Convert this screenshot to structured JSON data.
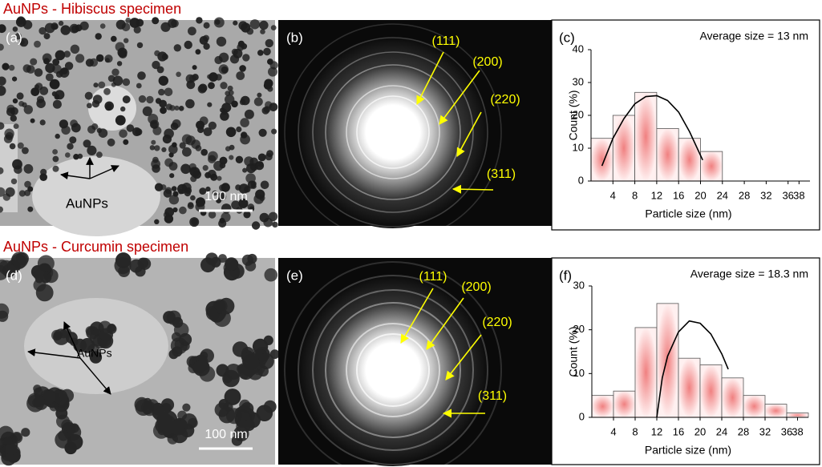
{
  "rows": [
    {
      "title": "AuNPs - Hibiscus specimen",
      "tem": {
        "label": "(a)",
        "annotation": "AuNPs",
        "scale_bar": "100 nm"
      },
      "saed": {
        "label": "(b)",
        "rings": [
          "(111)",
          "(200)",
          "(220)",
          "(311)"
        ]
      }
    },
    {
      "title": "AuNPs - Curcumin specimen",
      "tem": {
        "label": "(d)",
        "annotation": "AuNPs",
        "scale_bar": "100 nm"
      },
      "saed": {
        "label": "(e)",
        "rings": [
          "(111)",
          "(200)",
          "(220)",
          "(311)"
        ]
      }
    }
  ],
  "chart_data": [
    {
      "type": "histogram",
      "panel_label": "(c)",
      "annotation": "Average size = 13 nm",
      "x_label": "Particle size (nm)",
      "y_label": "Count (%)",
      "bins": [
        0,
        4,
        8,
        12,
        16,
        20,
        24
      ],
      "values": [
        13,
        20,
        27,
        16,
        13,
        9
      ],
      "color": "#f08080",
      "fit": {
        "x": [
          2,
          4,
          6,
          8,
          10,
          12,
          14,
          16,
          18,
          20.4
        ],
        "values": [
          4.6,
          13,
          19,
          23.5,
          25.7,
          26,
          24.5,
          21,
          15,
          6.4
        ]
      },
      "xlim": [
        0,
        40
      ],
      "xticks": [
        4,
        8,
        12,
        16,
        20,
        24,
        28,
        32,
        36,
        38
      ],
      "ylim": [
        0,
        40
      ],
      "yticks": [
        0,
        10,
        20,
        30,
        40
      ]
    },
    {
      "type": "histogram",
      "panel_label": "(f)",
      "annotation": "Average size = 18.3 nm",
      "x_label": "Particle size (nm)",
      "y_label": "Count (%)",
      "bins": [
        0,
        4,
        8,
        12,
        16,
        20,
        24,
        28,
        32,
        36,
        40
      ],
      "values": [
        5,
        6,
        20.5,
        26,
        13.5,
        12,
        9,
        5,
        3,
        1
      ],
      "color": "#f08080",
      "fit": {
        "x": [
          12,
          13,
          14,
          16,
          18,
          20,
          22,
          24,
          25.2
        ],
        "values": [
          0,
          9,
          14,
          19.5,
          22,
          21.5,
          19,
          14.5,
          11
        ]
      },
      "xlim": [
        0,
        40
      ],
      "xticks": [
        4,
        8,
        12,
        16,
        20,
        24,
        28,
        32,
        36,
        38
      ],
      "ylim": [
        0,
        30
      ],
      "yticks": [
        0,
        10,
        20,
        30
      ]
    }
  ]
}
